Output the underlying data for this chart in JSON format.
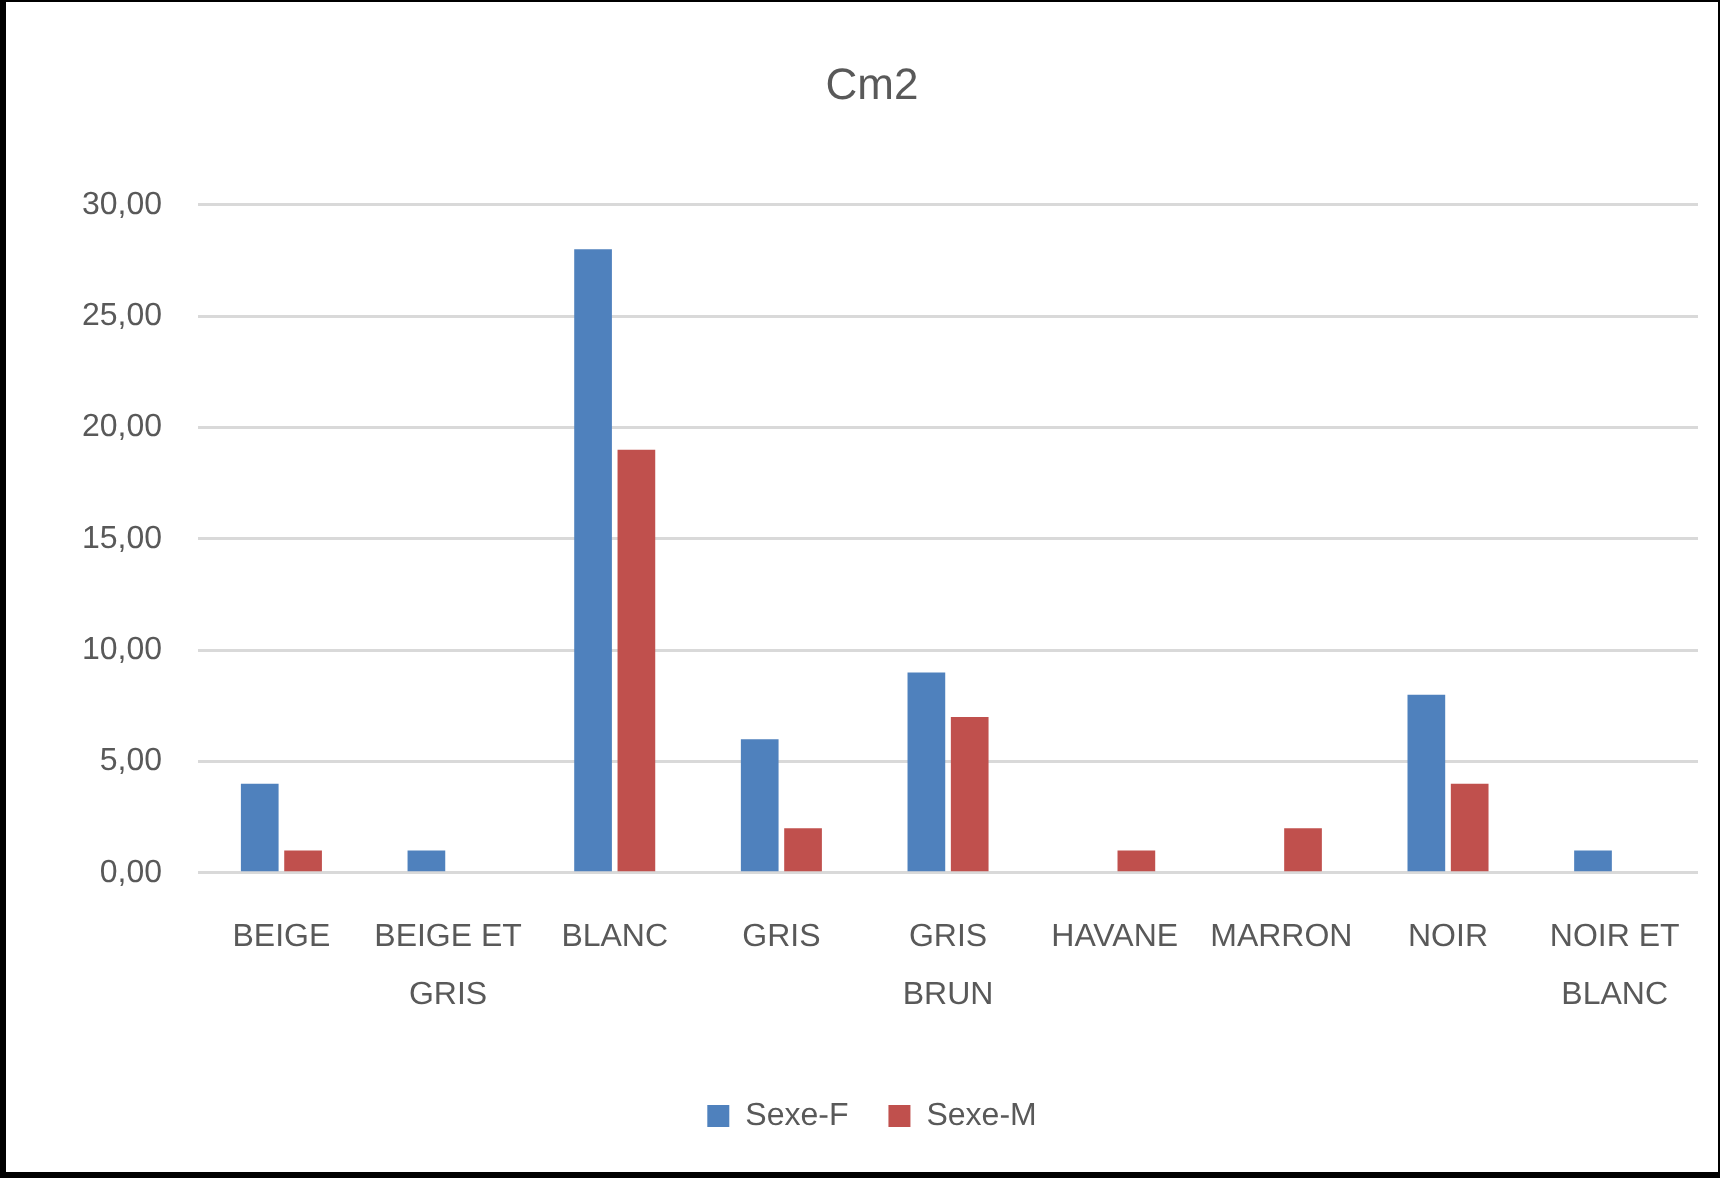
{
  "chart_data": {
    "type": "bar",
    "title": "Cm2",
    "categories": [
      "BEIGE",
      "BEIGE ET GRIS",
      "BLANC",
      "GRIS",
      "GRIS BRUN",
      "HAVANE",
      "MARRON",
      "NOIR",
      "NOIR ET BLANC"
    ],
    "series": [
      {
        "name": "Sexe-F",
        "color": "#4f81bd",
        "values": [
          4,
          1,
          28,
          6,
          9,
          null,
          null,
          8,
          1
        ]
      },
      {
        "name": "Sexe-M",
        "color": "#c0504d",
        "values": [
          1,
          null,
          19,
          2,
          7,
          1,
          2,
          4,
          null
        ]
      }
    ],
    "ylim": [
      0,
      30
    ],
    "yticks": [
      {
        "value": 0,
        "label": "0,00"
      },
      {
        "value": 5,
        "label": "5,00"
      },
      {
        "value": 10,
        "label": "10,00"
      },
      {
        "value": 15,
        "label": "15,00"
      },
      {
        "value": 20,
        "label": "20,00"
      },
      {
        "value": 25,
        "label": "25,00"
      },
      {
        "value": 30,
        "label": "30,00"
      }
    ],
    "grid": "y",
    "legend": "bottom"
  }
}
